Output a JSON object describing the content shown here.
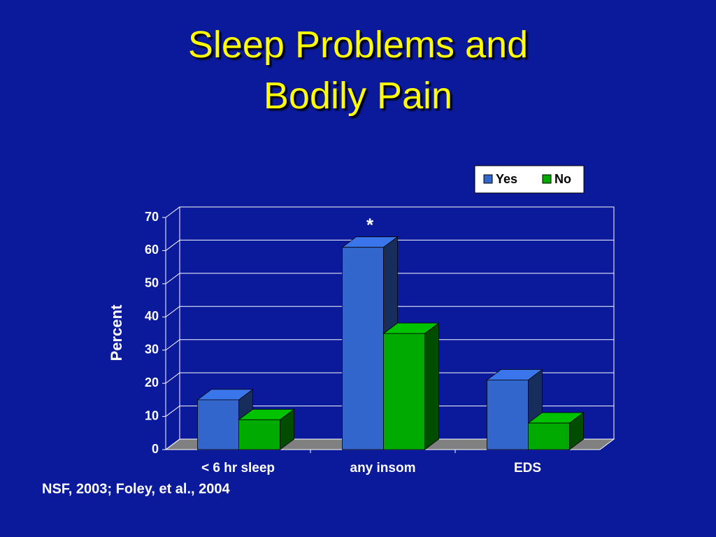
{
  "chart_data": {
    "type": "bar3d",
    "title": "Sleep Problems and Bodily Pain",
    "y_label": "Percent",
    "source": "NSF, 2003; Foley, et al., 2004",
    "annotations": [
      "*"
    ],
    "categories": [
      "< 6 hr sleep",
      "any insom",
      "EDS"
    ],
    "series": [
      {
        "name": "Yes",
        "color": "#3366cc",
        "values": [
          15,
          61,
          21
        ]
      },
      {
        "name": "No",
        "color": "#00aa00",
        "values": [
          9,
          35,
          8
        ]
      }
    ],
    "ylim": [
      0,
      70
    ],
    "yticks": [
      0,
      10,
      20,
      30,
      40,
      50,
      60,
      70
    ],
    "grid": true
  }
}
